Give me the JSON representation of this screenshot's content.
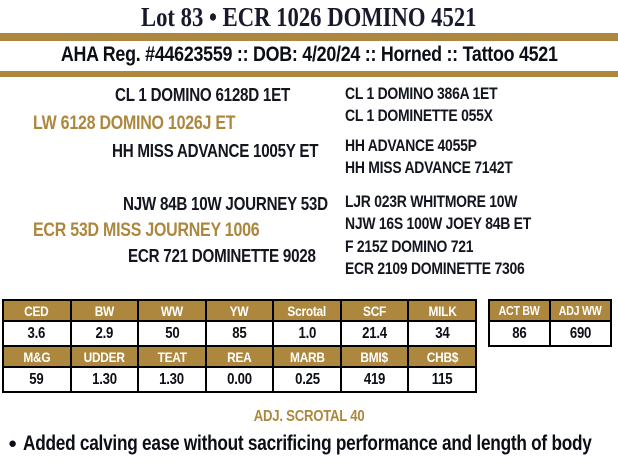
{
  "colors": {
    "gold": "#AC873D",
    "ink": "#10121c"
  },
  "header": {
    "title": "Lot 83 • ECR 1026 DOMINO 4521",
    "registration": "AHA Reg. #44623559 :: DOB: 4/20/24 :: Horned :: Tattoo 4521"
  },
  "pedigree": {
    "sire": {
      "name": "LW 6128 DOMINO 1026J ET",
      "sire": "CL 1 DOMINO 6128D 1ET",
      "dam": "HH MISS ADVANCE 1005Y ET",
      "grandparents": [
        "CL 1 DOMINO 386A 1ET",
        "CL 1 DOMINETTE 055X",
        "HH ADVANCE 4055P",
        "HH MISS ADVANCE 7142T"
      ]
    },
    "dam": {
      "name": "ECR 53D MISS JOURNEY 1006",
      "sire": "NJW 84B 10W JOURNEY 53D",
      "dam": "ECR 721 DOMINETTE 9028",
      "grandparents": [
        "LJR 023R WHITMORE 10W",
        "NJW 16S 100W JOEY 84B ET",
        "F 215Z DOMINO 721",
        "ECR 2109 DOMINETTE 7306"
      ]
    }
  },
  "epd_table": {
    "rows": [
      {
        "headers": [
          "CED",
          "BW",
          "WW",
          "YW",
          "Scrotal",
          "SCF",
          "MILK"
        ],
        "values": [
          "3.6",
          "2.9",
          "50",
          "85",
          "1.0",
          "21.4",
          "34"
        ]
      },
      {
        "headers": [
          "M&G",
          "UDDER",
          "TEAT",
          "REA",
          "MARB",
          "BMI$",
          "CHB$"
        ],
        "values": [
          "59",
          "1.30",
          "1.30",
          "0.00",
          "0.25",
          "419",
          "115"
        ]
      }
    ]
  },
  "act_table": {
    "headers": [
      "ACT BW",
      "ADJ WW"
    ],
    "values": [
      "86",
      "690"
    ]
  },
  "footer": {
    "adj_scrotal": "ADJ. SCROTAL 40",
    "bullet": "●",
    "note": "Added calving ease without sacrificing performance and length of body"
  }
}
